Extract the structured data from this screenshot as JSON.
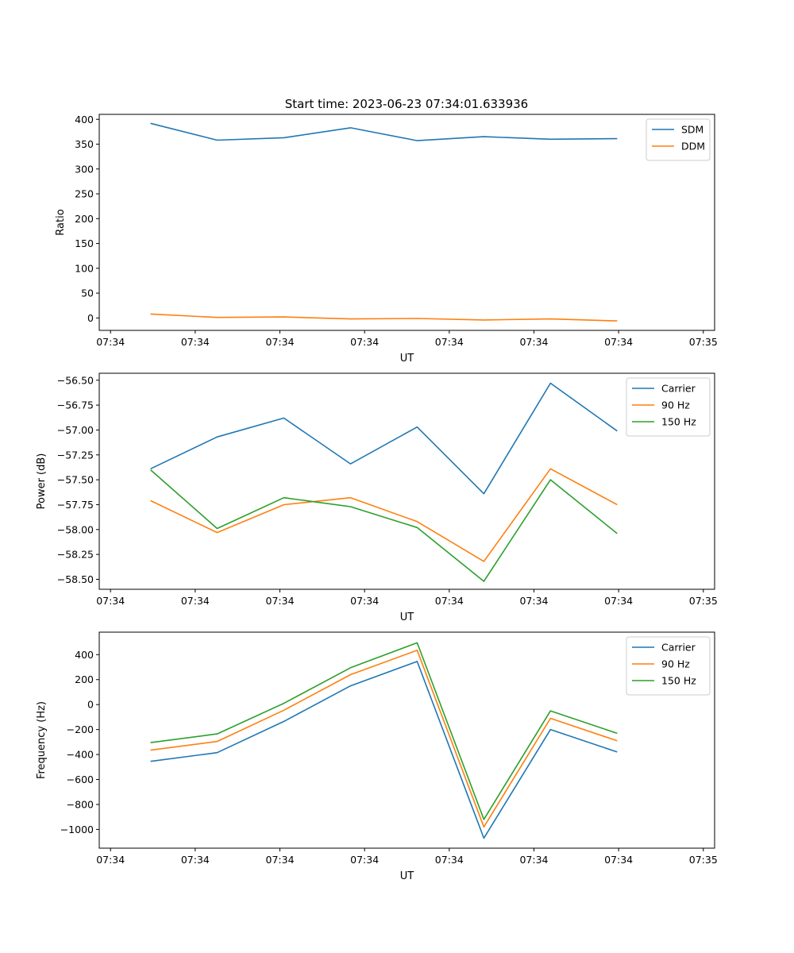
{
  "figure_title": "Start time: 2023-06-23 07:34:01.633936",
  "colors": {
    "series1": "#1f77b4",
    "series2": "#ff7f0e",
    "series3": "#2ca02c"
  },
  "chart_data": [
    {
      "type": "line",
      "title": "Start time: 2023-06-23 07:34:01.633936",
      "xlabel": "UT",
      "ylabel": "Ratio",
      "x_tick_labels": [
        "07:34",
        "07:34",
        "07:34",
        "07:34",
        "07:34",
        "07:34",
        "07:34",
        "07:35"
      ],
      "xlim": [
        0,
        6
      ],
      "x": [
        0.5,
        1.15,
        1.8,
        2.45,
        3.1,
        3.75,
        4.4,
        5.05
      ],
      "ylim": [
        -25,
        410
      ],
      "y_ticks": [
        0,
        50,
        100,
        150,
        200,
        250,
        300,
        350,
        400
      ],
      "legend": "top-right",
      "grid": false,
      "series": [
        {
          "name": "SDM",
          "values": [
            392,
            358,
            363,
            383,
            357,
            365,
            360,
            361
          ]
        },
        {
          "name": "DDM",
          "values": [
            8,
            1,
            2,
            -2,
            -1,
            -4,
            -2,
            -6
          ]
        }
      ]
    },
    {
      "type": "line",
      "title": "",
      "xlabel": "UT",
      "ylabel": "Power (dB)",
      "x_tick_labels": [
        "07:34",
        "07:34",
        "07:34",
        "07:34",
        "07:34",
        "07:34",
        "07:34",
        "07:35"
      ],
      "xlim": [
        0,
        6
      ],
      "x": [
        0.5,
        1.15,
        1.8,
        2.45,
        3.1,
        3.75,
        4.4,
        5.05
      ],
      "ylim": [
        -58.6,
        -56.43
      ],
      "y_ticks": [
        -58.5,
        -58.25,
        -58.0,
        -57.75,
        -57.5,
        -57.25,
        -57.0,
        -56.75,
        -56.5
      ],
      "y_tick_labels": [
        "−58.50",
        "−58.25",
        "−58.00",
        "−57.75",
        "−57.50",
        "−57.25",
        "−57.00",
        "−56.75",
        "−56.50"
      ],
      "legend": "top-right",
      "grid": false,
      "series": [
        {
          "name": "Carrier",
          "values": [
            -57.39,
            -57.07,
            -56.88,
            -57.34,
            -56.97,
            -57.64,
            -56.53,
            -57.01
          ]
        },
        {
          "name": "90 Hz",
          "values": [
            -57.71,
            -58.03,
            -57.75,
            -57.68,
            -57.92,
            -58.32,
            -57.39,
            -57.75
          ]
        },
        {
          "name": "150 Hz",
          "values": [
            -57.4,
            -57.99,
            -57.68,
            -57.77,
            -57.98,
            -58.52,
            -57.5,
            -58.04
          ]
        }
      ]
    },
    {
      "type": "line",
      "title": "",
      "xlabel": "UT",
      "ylabel": "Frequency (Hz)",
      "x_tick_labels": [
        "07:34",
        "07:34",
        "07:34",
        "07:34",
        "07:34",
        "07:34",
        "07:34",
        "07:35"
      ],
      "xlim": [
        0,
        6
      ],
      "x": [
        0.5,
        1.15,
        1.8,
        2.45,
        3.1,
        3.75,
        4.4,
        5.05
      ],
      "ylim": [
        -1150,
        580
      ],
      "y_ticks": [
        -1000,
        -800,
        -600,
        -400,
        -200,
        0,
        200,
        400
      ],
      "y_tick_labels": [
        "−1000",
        "−800",
        "−600",
        "−400",
        "−200",
        "0",
        "200",
        "400"
      ],
      "legend": "top-right",
      "grid": false,
      "series": [
        {
          "name": "Carrier",
          "values": [
            -455,
            -385,
            -135,
            150,
            345,
            -1070,
            -200,
            -380
          ]
        },
        {
          "name": "90 Hz",
          "values": [
            -365,
            -295,
            -45,
            240,
            435,
            -980,
            -110,
            -290
          ]
        },
        {
          "name": "150 Hz",
          "values": [
            -305,
            -235,
            10,
            295,
            495,
            -920,
            -50,
            -230
          ]
        }
      ]
    }
  ]
}
